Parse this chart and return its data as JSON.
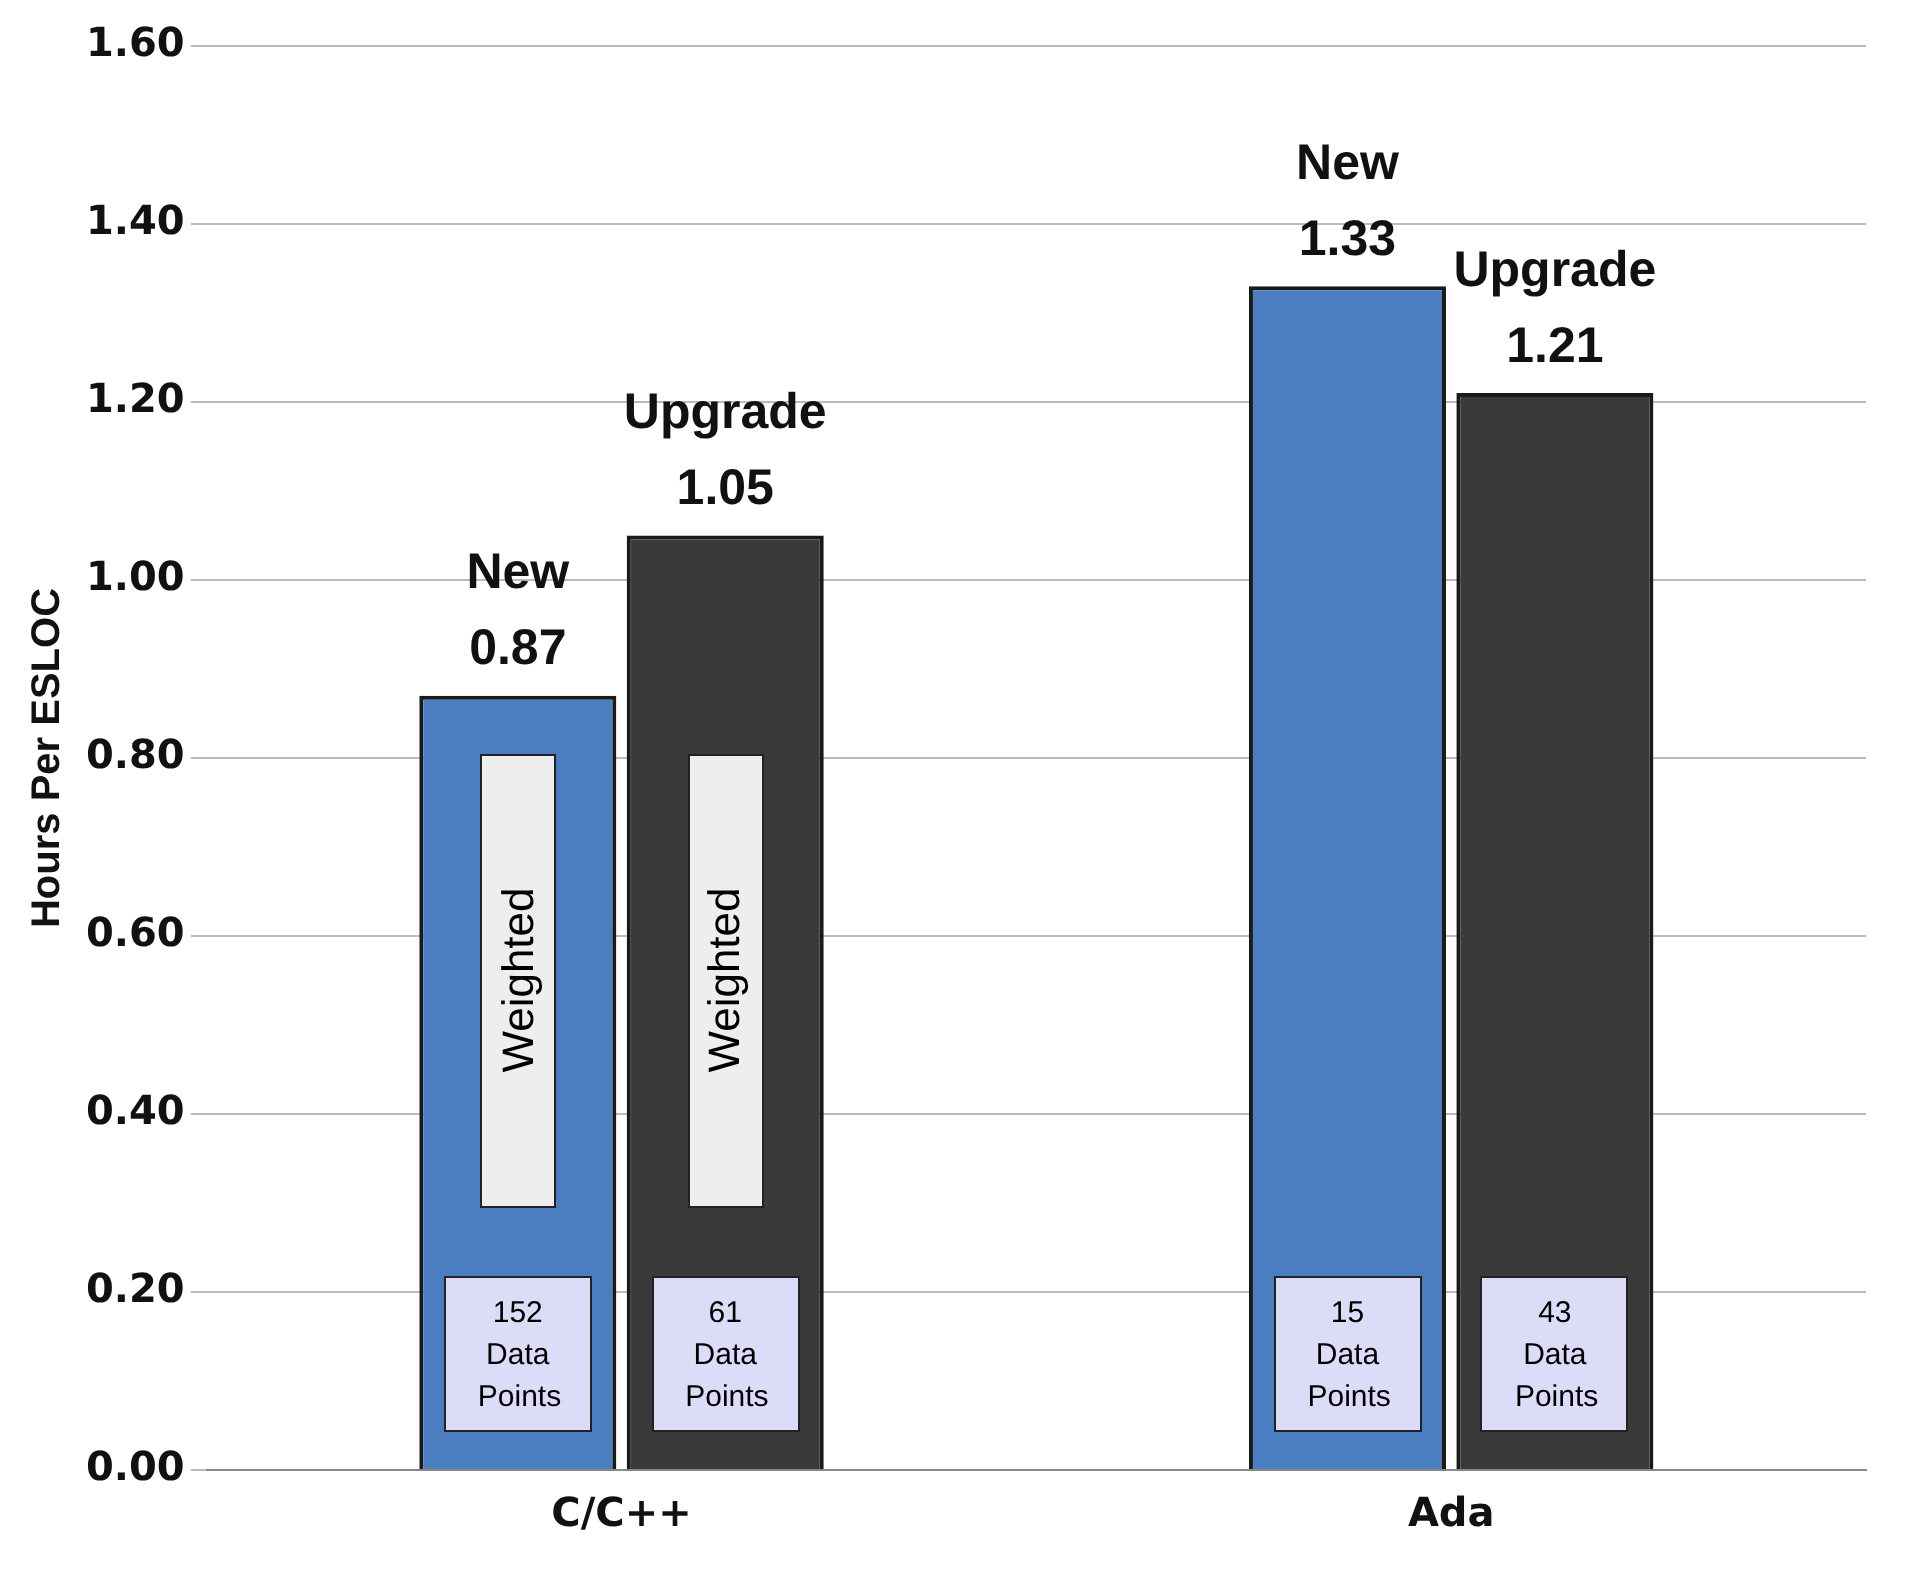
{
  "chart_data": {
    "type": "bar",
    "ylabel": "Hours Per ESLOC",
    "categories": [
      "C/C++",
      "Ada"
    ],
    "series": [
      {
        "name": "New",
        "color": "#4a7ec0",
        "values": [
          0.87,
          1.33
        ]
      },
      {
        "name": "Upgrade",
        "color": "#3a3a3a",
        "values": [
          1.05,
          1.21
        ]
      }
    ],
    "ylim": [
      0,
      1.6
    ],
    "yticks": [
      {
        "value": 0,
        "label": "0.00"
      },
      {
        "value": 0.2,
        "label": "0.20"
      },
      {
        "value": 0.4,
        "label": "0.40"
      },
      {
        "value": 0.6,
        "label": "0.60"
      },
      {
        "value": 0.8,
        "label": "0.80"
      },
      {
        "value": 1,
        "label": "1.00"
      },
      {
        "value": 1.2,
        "label": "1.20"
      },
      {
        "value": 1.4,
        "label": "1.40"
      },
      {
        "value": 1.6,
        "label": "1.60"
      }
    ],
    "grid": "y",
    "legend": false,
    "data_labels": true,
    "annotations": [
      {
        "text": "Weighted",
        "x": "C/C++",
        "y": 0.55
      },
      {
        "text": "Weighted",
        "x": "C/C++",
        "y": 0.55
      },
      {
        "text": "152 Data Points",
        "x": "C/C++",
        "y": 0.13
      },
      {
        "text": "61 Data Points",
        "x": "C/C++",
        "y": 0.13
      },
      {
        "text": "15 Data Points",
        "x": "Ada",
        "y": 0.13
      },
      {
        "text": "43 Data Points",
        "x": "Ada",
        "y": 0.13
      }
    ]
  }
}
